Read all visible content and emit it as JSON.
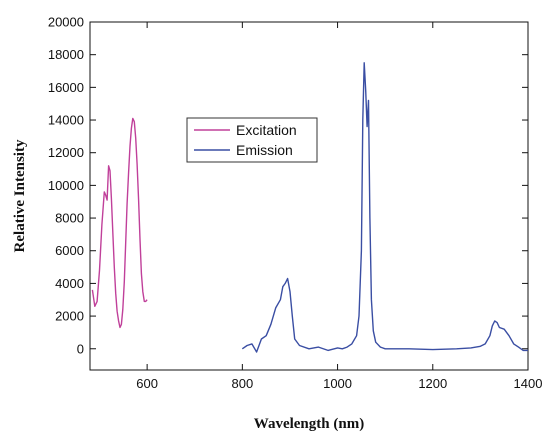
{
  "chart_data": {
    "type": "line",
    "xlabel": "Wavelength (nm)",
    "ylabel": "Relative Intensity",
    "xlim": [
      480,
      1400
    ],
    "ylim": [
      -1300,
      20000
    ],
    "x_ticks": [
      600,
      800,
      1000,
      1200,
      1400
    ],
    "y_ticks": [
      0,
      2000,
      4000,
      6000,
      8000,
      10000,
      12000,
      14000,
      16000,
      18000,
      20000
    ],
    "grid": false,
    "legend": "upper-left-center",
    "series": [
      {
        "name": "Excitation",
        "color": "#c0409a",
        "x": [
          485,
          490,
          495,
          500,
          505,
          510,
          513,
          516,
          519,
          522,
          525,
          528,
          531,
          534,
          537,
          540,
          543,
          546,
          549,
          552,
          555,
          558,
          561,
          564,
          567,
          570,
          573,
          576,
          579,
          582,
          585,
          588,
          591,
          594,
          597,
          600
        ],
        "y": [
          3600,
          2600,
          2900,
          4800,
          7600,
          9600,
          9400,
          9100,
          11200,
          10900,
          9200,
          7000,
          5000,
          3400,
          2300,
          1700,
          1300,
          1500,
          2400,
          4100,
          6500,
          8900,
          10800,
          12400,
          13500,
          14100,
          13900,
          12900,
          11300,
          9100,
          6700,
          4600,
          3500,
          2900,
          2900,
          3000
        ]
      },
      {
        "name": "Emission",
        "color": "#3a4ea3",
        "x": [
          800,
          810,
          820,
          830,
          840,
          850,
          860,
          870,
          880,
          885,
          890,
          895,
          900,
          905,
          910,
          920,
          940,
          960,
          980,
          1000,
          1010,
          1020,
          1030,
          1040,
          1045,
          1050,
          1053,
          1056,
          1059,
          1062,
          1065,
          1068,
          1071,
          1075,
          1080,
          1090,
          1100,
          1120,
          1150,
          1200,
          1250,
          1280,
          1300,
          1310,
          1320,
          1325,
          1330,
          1335,
          1340,
          1350,
          1360,
          1370,
          1380,
          1390,
          1400
        ],
        "y": [
          0,
          200,
          300,
          -200,
          600,
          800,
          1500,
          2500,
          3000,
          3800,
          4000,
          4300,
          3500,
          2000,
          600,
          200,
          0,
          100,
          -100,
          50,
          0,
          100,
          300,
          800,
          2000,
          6000,
          14000,
          17500,
          15800,
          13600,
          15200,
          8000,
          3000,
          1100,
          400,
          100,
          0,
          0,
          0,
          -50,
          0,
          50,
          150,
          300,
          800,
          1400,
          1700,
          1600,
          1300,
          1200,
          800,
          300,
          100,
          -100,
          -100
        ]
      }
    ]
  }
}
